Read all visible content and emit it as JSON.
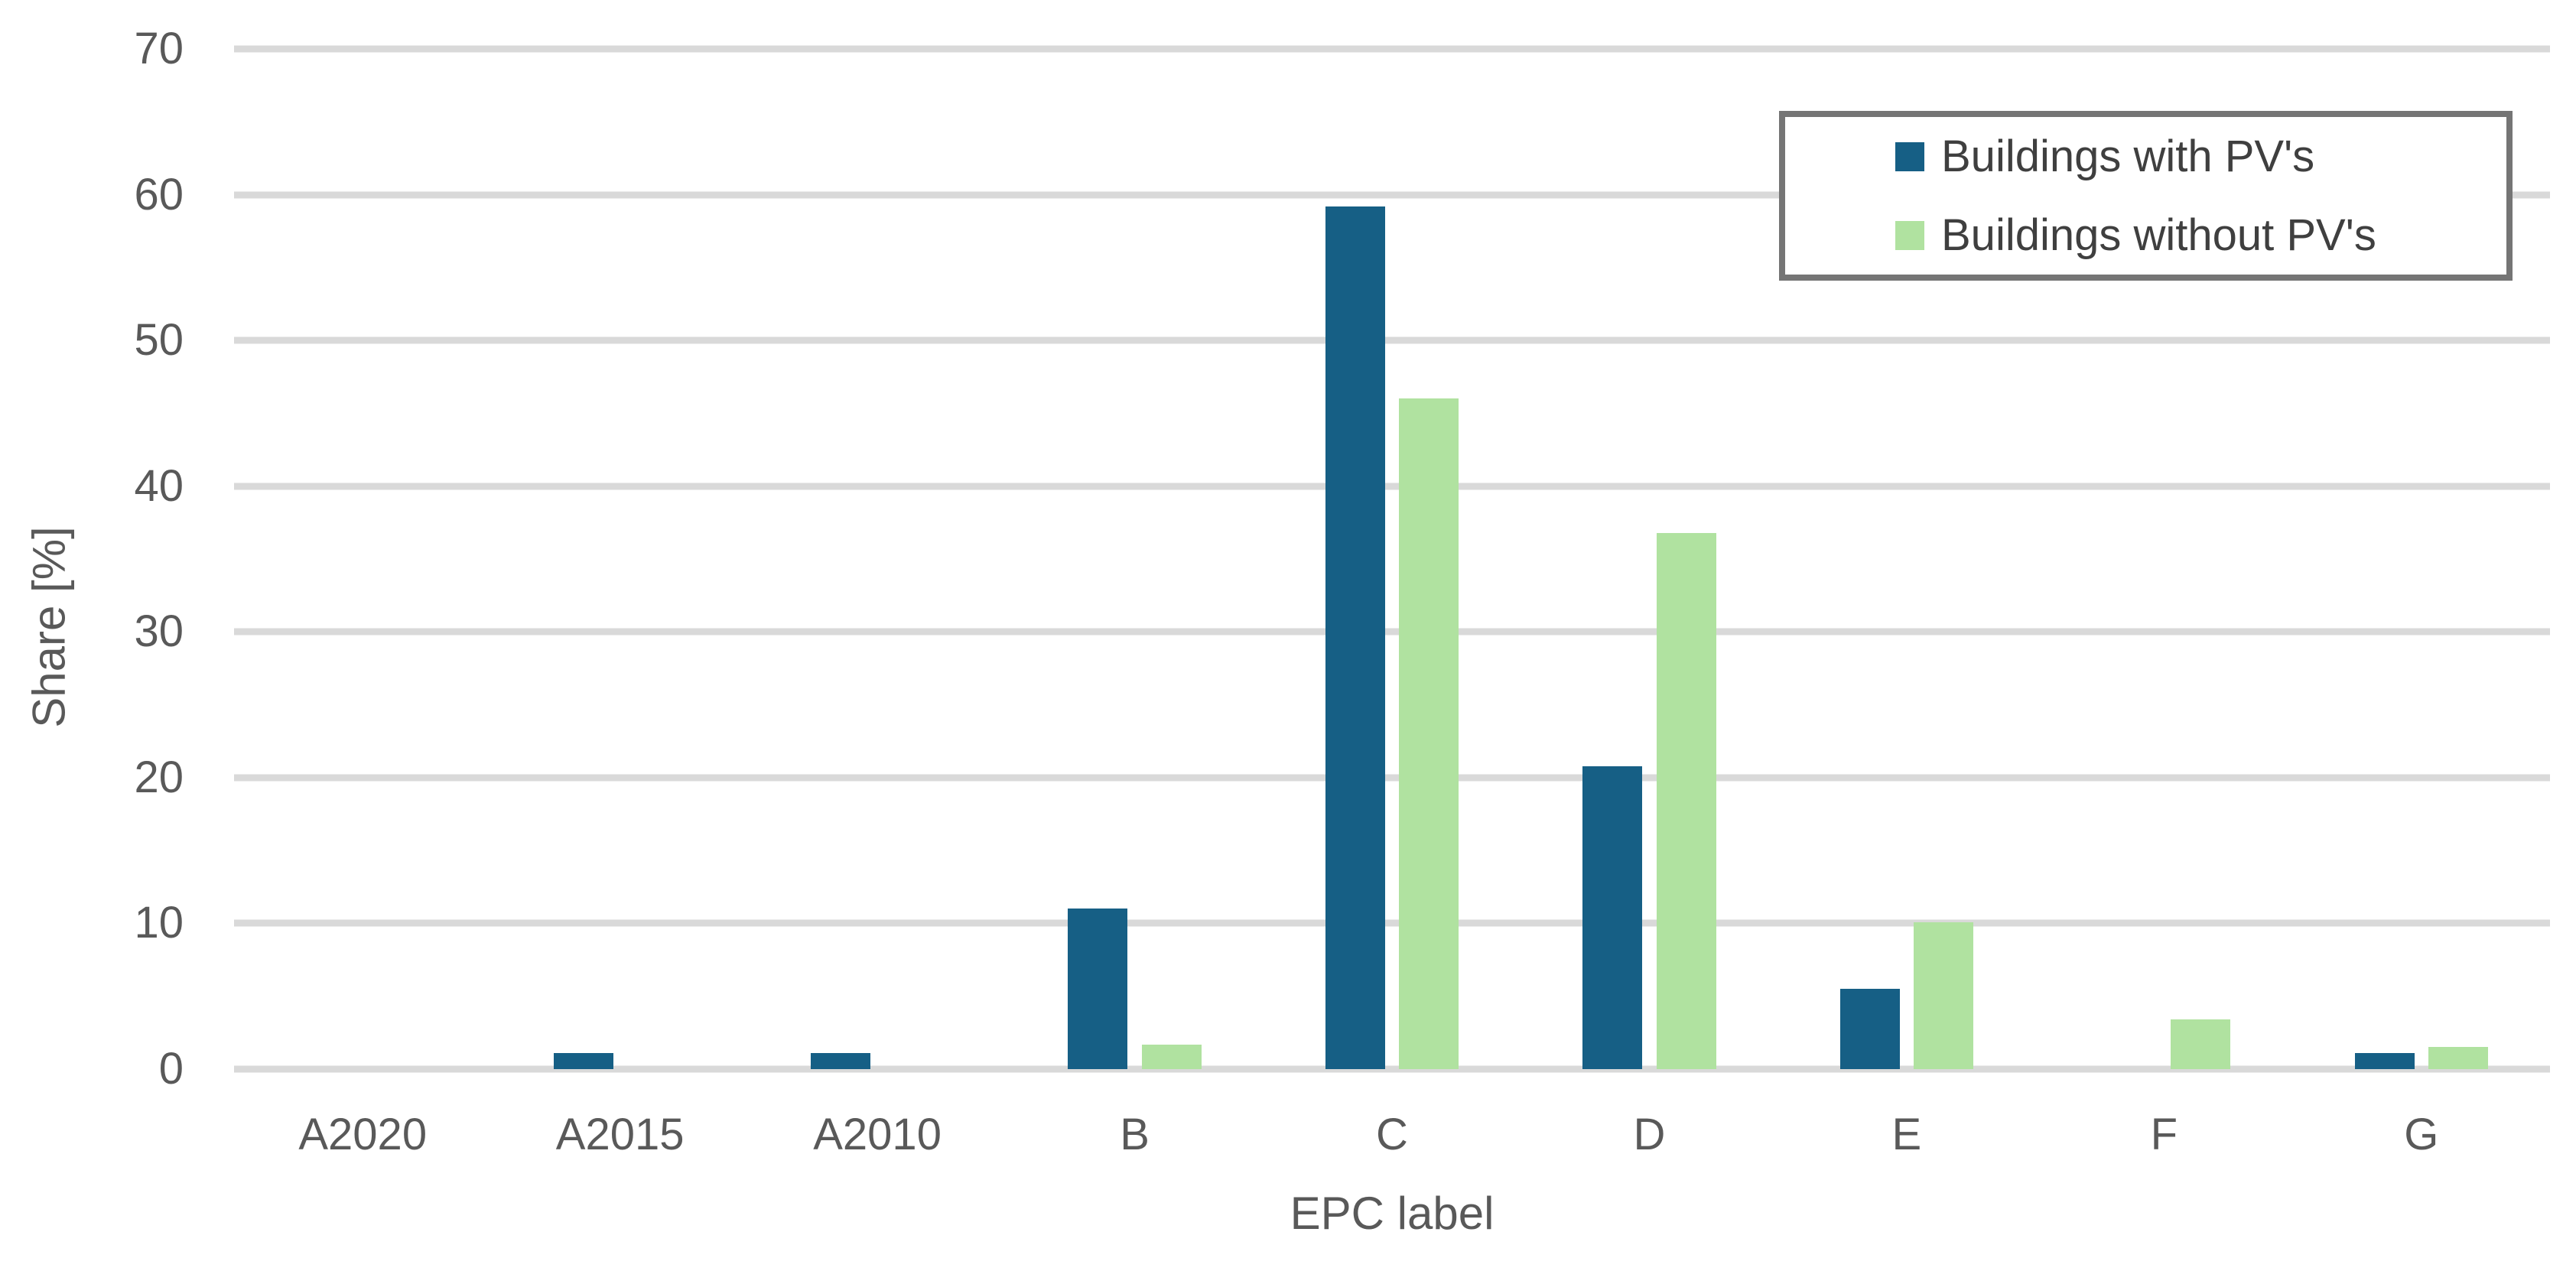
{
  "chart_data": {
    "type": "bar",
    "title": "",
    "categories": [
      "A2020",
      "A2015",
      "A2010",
      "B",
      "C",
      "D",
      "E",
      "F",
      "G"
    ],
    "series": [
      {
        "name": "Buildings with PV's",
        "color": "#165F85",
        "values": [
          0,
          1.1,
          1.1,
          11.0,
          59.2,
          20.8,
          5.5,
          0,
          1.1
        ]
      },
      {
        "name": "Buildings without PV's",
        "color": "#B0E2A0",
        "values": [
          0,
          0,
          0,
          1.7,
          46.0,
          36.8,
          10.1,
          3.4,
          1.5
        ]
      }
    ],
    "xlabel": "EPC label",
    "ylabel": "Share [%]",
    "ylim": [
      0,
      70
    ],
    "yticks": [
      0,
      10,
      20,
      30,
      40,
      50,
      60,
      70
    ],
    "grid": "horizontal-only",
    "legend_position": "top-right-inside",
    "colors": {
      "background": "#FFFFFF",
      "gridline": "#D9D9D9",
      "axis_text": "#595959",
      "legend_text": "#3F3F3F",
      "legend_border": "#757575"
    }
  }
}
